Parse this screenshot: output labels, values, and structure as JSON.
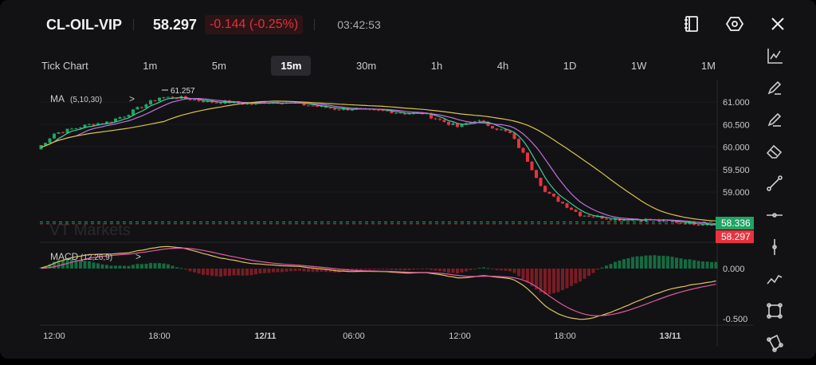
{
  "header": {
    "symbol": "CL-OIL-VIP",
    "price": "58.297",
    "change": "-0.144 (-0.25%)",
    "clock": "03:42:53"
  },
  "top_icons": [
    "notebook-icon",
    "settings-hex-icon",
    "close-icon"
  ],
  "timeframes": [
    {
      "label": "Tick Chart"
    },
    {
      "label": "1m"
    },
    {
      "label": "5m"
    },
    {
      "label": "15m",
      "active": true
    },
    {
      "label": "30m"
    },
    {
      "label": "1h"
    },
    {
      "label": "4h"
    },
    {
      "label": "1D"
    },
    {
      "label": "1W"
    },
    {
      "label": "1M"
    }
  ],
  "tools": [
    "indicator-chart-icon",
    "pencil-icon",
    "pencil-line-icon",
    "eraser-icon",
    "trend-line-icon",
    "horizontal-line-icon",
    "vertical-line-icon",
    "polyline-icon",
    "rectangle-icon",
    "polygon-icon"
  ],
  "colors": {
    "up": "#1fa463",
    "down": "#e8323f",
    "ma5": "#3ecf9b",
    "ma10": "#c070e0",
    "ma30": "#d9c24a",
    "dif": "#e0c060",
    "dea": "#e05aa0"
  },
  "chart_data": {
    "type": "candlestick",
    "interval": "15m",
    "main_indicator": {
      "label": "MA",
      "params": "(5,10,30)"
    },
    "sub_indicator": {
      "label": "MACD",
      "params": "(12,26,9)"
    },
    "high_marker": "61.257",
    "price_ticks": [
      "61.000",
      "60.500",
      "60.000",
      "59.500",
      "59.000"
    ],
    "price_range": [
      58.05,
      61.45
    ],
    "macd_ticks": [
      "0.000",
      "-0.500"
    ],
    "macd_range": [
      -0.58,
      0.25
    ],
    "bid_label": "58.336",
    "last_label": "58.297",
    "time_ticks": [
      "12:00",
      "18:00",
      "12/11",
      "06:00",
      "12:00",
      "18:00",
      "13/11"
    ],
    "hourly_close_start": "11/11 11:00",
    "hourly_close": [
      59.95,
      60.3,
      60.4,
      60.5,
      60.55,
      60.7,
      60.9,
      61.1,
      61.1,
      61.05,
      61.0,
      61.0,
      60.95,
      61.0,
      61.0,
      60.95,
      60.9,
      60.85,
      60.85,
      60.8,
      60.8,
      60.75,
      60.75,
      60.6,
      60.45,
      60.6,
      60.45,
      60.3,
      59.7,
      59.0,
      58.75,
      58.5,
      58.45,
      58.4,
      58.4,
      58.38,
      58.35,
      58.32,
      58.3,
      58.297
    ],
    "watermark": "VT Markets"
  }
}
